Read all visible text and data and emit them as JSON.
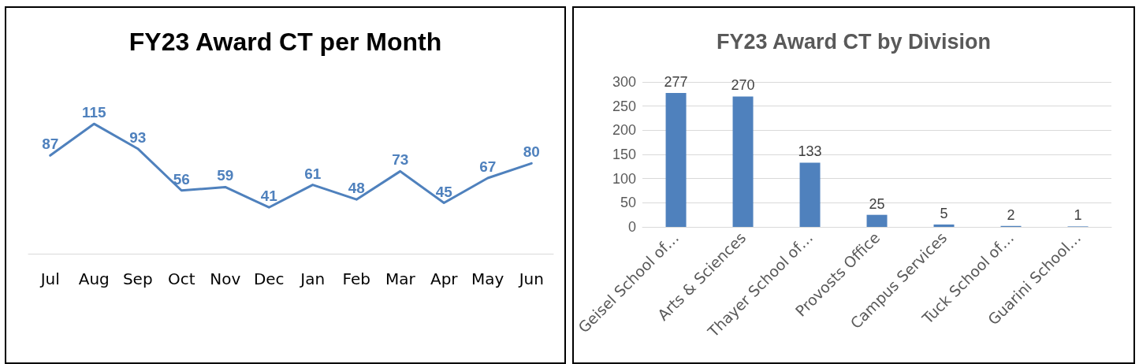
{
  "chart_data": [
    {
      "type": "line",
      "title": "FY23 Award CT per Month",
      "categories": [
        "Jul",
        "Aug",
        "Sep",
        "Oct",
        "Nov",
        "Dec",
        "Jan",
        "Feb",
        "Mar",
        "Apr",
        "May",
        "Jun"
      ],
      "series": [
        {
          "color": "#4f81bd",
          "values": [
            87,
            115,
            93,
            56,
            59,
            41,
            61,
            48,
            73,
            45,
            67,
            80
          ]
        }
      ],
      "data_labels": true,
      "marker": "none",
      "grid": false,
      "tick_labels": "x"
    },
    {
      "type": "bar",
      "title": "FY23 Award CT by Division",
      "categories": [
        "Geisel School of…",
        "Arts & Sciences",
        "Thayer School of…",
        "Provosts Office",
        "Campus Services",
        "Tuck School of…",
        "Guarini School…"
      ],
      "series": [
        {
          "color": "#4f81bd",
          "values": [
            277,
            270,
            133,
            25,
            5,
            2,
            1
          ]
        }
      ],
      "ylim": [
        0,
        300
      ],
      "yticks": [
        0,
        50,
        100,
        150,
        200,
        250,
        300
      ],
      "grid": "y",
      "data_labels": true
    }
  ]
}
